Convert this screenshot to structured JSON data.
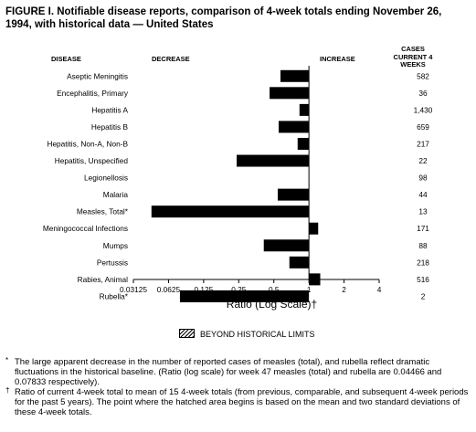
{
  "figure": {
    "title": "FIGURE I. Notifiable disease reports, comparison of 4-week totals ending November 26, 1994, with historical data — United States",
    "headers": {
      "disease": "DISEASE",
      "decrease": "DECREASE",
      "increase": "INCREASE",
      "cases": "CASES CURRENT 4 WEEKS"
    },
    "legend_label": "BEYOND HISTORICAL LIMITS",
    "footnotes": [
      {
        "mark": "*",
        "text": "The large apparent decrease in the number of reported cases of measles (total), and rubella reflect dramatic fluctuations in the historical baseline. (Ratio (log scale) for week 47 measles (total) and rubella are 0.04466 and 0.07833 respectively)."
      },
      {
        "mark": "†",
        "text": "Ratio of current 4-week total to mean of 15 4-week totals (from previous, comparable, and subsequent 4-week periods for the past 5 years). The point where the hatched area begins is based on the mean and two standard deviations of these 4-week totals."
      }
    ]
  },
  "chart_data": {
    "type": "bar",
    "orientation": "horizontal",
    "x_scale": "log2",
    "xlabel": "Ratio (Log Scale)†",
    "xlim": [
      0.03125,
      4
    ],
    "x_ticks": [
      0.03125,
      0.0625,
      0.125,
      0.25,
      0.5,
      1,
      2,
      4
    ],
    "x_tick_labels": [
      "0.03125",
      "0.0625",
      "0.125",
      "0.25",
      "0.5",
      "1",
      "2",
      "4"
    ],
    "baseline": 1,
    "categories": [
      "Aseptic Meningitis",
      "Encephalitis, Primary",
      "Hepatitis A",
      "Hepatitis B",
      "Hepatitis, Non-A, Non-B",
      "Hepatitis, Unspecified",
      "Legionellosis",
      "Malaria",
      "Measles, Total*",
      "Meningococcal Infections",
      "Mumps",
      "Pertussis",
      "Rabies, Animal",
      "Rubella*"
    ],
    "ratios": [
      0.57,
      0.46,
      0.83,
      0.55,
      0.8,
      0.24,
      1.0,
      0.54,
      0.04466,
      1.2,
      0.41,
      0.68,
      1.25,
      0.07833
    ],
    "cases_current_4_weeks": [
      "582",
      "36",
      "1,430",
      "659",
      "217",
      "22",
      "98",
      "44",
      "13",
      "171",
      "88",
      "218",
      "516",
      "2"
    ],
    "bar_color": "#000000",
    "grid": false
  }
}
